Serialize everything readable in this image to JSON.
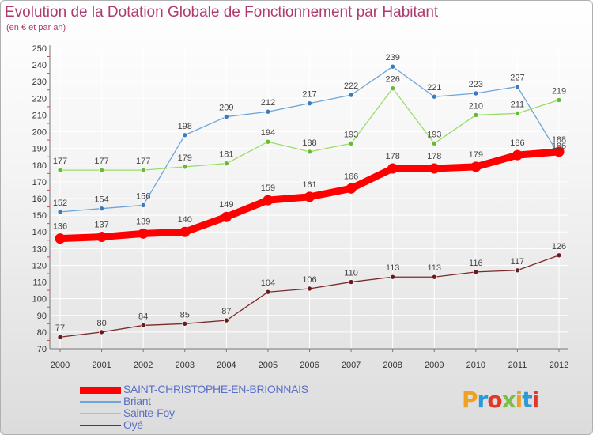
{
  "title": "Evolution de la Dotation Globale de Fonctionnement par Habitant",
  "subtitle": "(en € et par an)",
  "logo": {
    "text": "Proxiti",
    "colors": [
      "#f0a022",
      "#2c9ad6",
      "#e0382a",
      "#7ac143",
      "#f0a022",
      "#2c9ad6",
      "#e0382a"
    ]
  },
  "chart_data": {
    "type": "line",
    "title": "Evolution de la Dotation Globale de Fonctionnement par Habitant",
    "subtitle": "(en € et par an)",
    "x": [
      "2000",
      "2001",
      "2002",
      "2003",
      "2004",
      "2005",
      "2006",
      "2007",
      "2008",
      "2009",
      "2010",
      "2011",
      "2012"
    ],
    "ylim": [
      70,
      250
    ],
    "yticks": [
      70,
      80,
      90,
      100,
      110,
      120,
      130,
      140,
      150,
      160,
      170,
      180,
      190,
      200,
      210,
      220,
      230,
      240,
      250
    ],
    "grid": true,
    "legend_position": "bottom-left",
    "series": [
      {
        "name": "Briant",
        "color": "#6ea5d8",
        "marker": "#3a7bc0",
        "values": [
          152,
          154,
          156,
          198,
          209,
          212,
          217,
          222,
          239,
          221,
          223,
          227,
          186
        ]
      },
      {
        "name": "Sainte-Foy",
        "color": "#99dd66",
        "marker": "#66bb33",
        "values": [
          177,
          177,
          177,
          179,
          181,
          194,
          188,
          193,
          226,
          193,
          210,
          211,
          219
        ]
      },
      {
        "name": "Oyé",
        "color": "#7a2a2a",
        "marker": "#6a1a1a",
        "values": [
          77,
          80,
          84,
          85,
          87,
          104,
          106,
          110,
          113,
          113,
          116,
          117,
          126
        ]
      },
      {
        "name": "SAINT-CHRISTOPHE-EN-BRIONNAIS",
        "color": "#ff0000",
        "marker": "#ff0000",
        "bold": true,
        "values": [
          136,
          137,
          139,
          140,
          149,
          159,
          161,
          166,
          178,
          178,
          179,
          186,
          188
        ]
      }
    ],
    "legend_order": [
      "SAINT-CHRISTOPHE-EN-BRIONNAIS",
      "Briant",
      "Sainte-Foy",
      "Oyé"
    ]
  }
}
